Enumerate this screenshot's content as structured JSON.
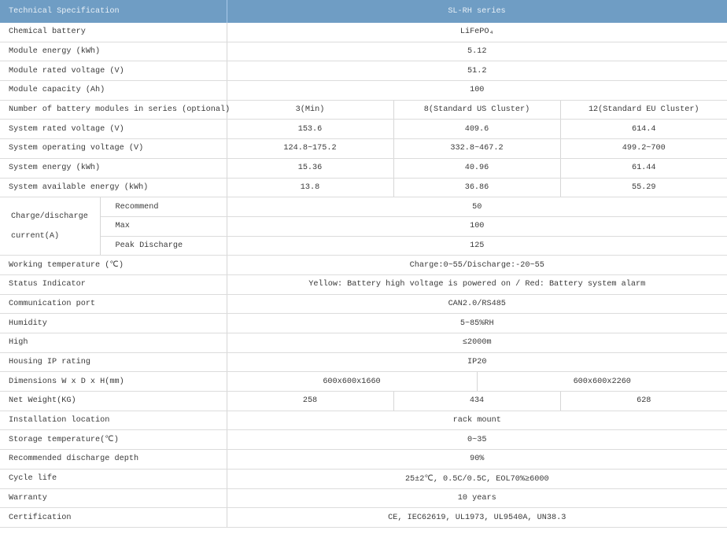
{
  "header": {
    "label": "Technical Specification",
    "series": "SL-RH  series"
  },
  "colors": {
    "header_bg": "#6f9dc4",
    "border": "#dcdcdc"
  },
  "rows": [
    {
      "label": "Chemical battery",
      "values": [
        "LiFePO₄"
      ]
    },
    {
      "label": "Module energy (kWh)",
      "values": [
        "5.12"
      ]
    },
    {
      "label": "Module rated voltage (V)",
      "values": [
        "51.2"
      ]
    },
    {
      "label": "Module capacity (Ah)",
      "values": [
        "100"
      ]
    },
    {
      "label": "Number of battery modules in series (optional)",
      "values": [
        "3(Min)",
        "8(Standard US Cluster)",
        "12(Standard EU Cluster)"
      ]
    },
    {
      "label": "System rated voltage (V)",
      "values": [
        "153.6",
        "409.6",
        "614.4"
      ]
    },
    {
      "label": "System operating voltage (V)",
      "values": [
        "124.8~175.2",
        "332.8~467.2",
        "499.2~700"
      ]
    },
    {
      "label": "System energy (kWh)",
      "values": [
        "15.36",
        "40.96",
        "61.44"
      ]
    },
    {
      "label": "System available energy (kWh)",
      "values": [
        "13.8",
        "36.86",
        "55.29"
      ]
    },
    {
      "group": "Charge/discharge current(A)",
      "label": "Recommend",
      "values": [
        "50"
      ]
    },
    {
      "group": "Charge/discharge current(A)",
      "label": "Max",
      "values": [
        "100"
      ]
    },
    {
      "group": "Charge/discharge current(A)",
      "label": "Peak Discharge",
      "values": [
        "125"
      ]
    },
    {
      "label": "Working temperature (℃)",
      "values": [
        "Charge:0~55/Discharge:-20~55"
      ]
    },
    {
      "label": "Status Indicator",
      "values": [
        "Yellow: Battery high voltage is powered on / Red: Battery system alarm"
      ]
    },
    {
      "label": "Communication port",
      "values": [
        "CAN2.0/RS485"
      ]
    },
    {
      "label": "Humidity",
      "values": [
        "5~85%RH"
      ]
    },
    {
      "label": "High",
      "values": [
        "≤2000m"
      ]
    },
    {
      "label": "Housing IP rating",
      "values": [
        "IP20"
      ]
    },
    {
      "label": "Dimensions W x D x H(mm)",
      "values": [
        "600x600x1660",
        "600x600x2260"
      ]
    },
    {
      "label": "Net Weight(KG)",
      "values": [
        "258",
        "434",
        "628"
      ]
    },
    {
      "label": "Installation location",
      "values": [
        "rack mount"
      ]
    },
    {
      "label": "Storage temperature(℃)",
      "values": [
        "0~35"
      ]
    },
    {
      "label": "Recommended discharge depth",
      "values": [
        "90%"
      ]
    },
    {
      "label": "Cycle life",
      "values": [
        "25±2℃, 0.5C/0.5C, EOL70%≥6000"
      ]
    },
    {
      "label": "Warranty",
      "values": [
        "10 years"
      ]
    },
    {
      "label": "Certification",
      "values": [
        "CE, IEC62619, UL1973, UL9540A, UN38.3"
      ]
    }
  ]
}
